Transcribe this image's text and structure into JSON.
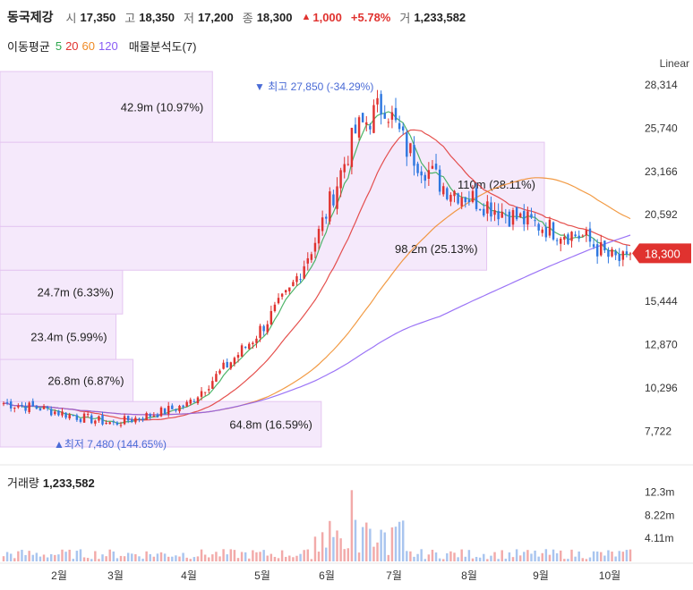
{
  "header": {
    "name": "동국제강",
    "open_label": "시",
    "open": "17,350",
    "high_label": "고",
    "high": "18,350",
    "low_label": "저",
    "low": "17,200",
    "close_label": "종",
    "close": "18,300",
    "change_icon": "triangle-up-icon",
    "change": "1,000",
    "change_pct": "+5.78%",
    "volume_label": "거",
    "volume": "1,233,582"
  },
  "indicators": {
    "ma_label": "이동평균",
    "ma": [
      {
        "period": "5",
        "color": "#2fa84f"
      },
      {
        "period": "20",
        "color": "#e0322f"
      },
      {
        "period": "60",
        "color": "#f08a24"
      },
      {
        "period": "120",
        "color": "#8a5cf5"
      }
    ],
    "profile_label": "매물분석도(7)"
  },
  "scale_label": "Linear",
  "volume_panel": {
    "label": "거래량",
    "value": "1,233,582"
  },
  "chart_data": {
    "type": "candlestick",
    "y_ticks": [
      "28,314",
      "25,740",
      "23,166",
      "20,592",
      "18,300",
      "15,444",
      "12,870",
      "10,296",
      "7,722"
    ],
    "ylim": [
      6800,
      29100
    ],
    "current_price": "18,300",
    "x_ticks": [
      "2월",
      "3월",
      "4월",
      "5월",
      "6월",
      "7월",
      "8월",
      "9월",
      "10월"
    ],
    "high_marker": {
      "text": "최고 27,850 (-34.29%)"
    },
    "low_marker": {
      "text": "최저 7,480 (144.65%)"
    },
    "volume_profile": [
      {
        "label": "64.8m (16.59%)",
        "price_lo": 6800,
        "price_hi": 9500,
        "share": 16.59
      },
      {
        "label": "26.8m (6.87%)",
        "price_lo": 9500,
        "price_hi": 12000,
        "share": 6.87
      },
      {
        "label": "23.4m (5.99%)",
        "price_lo": 12000,
        "price_hi": 14700,
        "share": 5.99
      },
      {
        "label": "24.7m (6.33%)",
        "price_lo": 14700,
        "price_hi": 17300,
        "share": 6.33
      },
      {
        "label": "98.2m (25.13%)",
        "price_lo": 17300,
        "price_hi": 19900,
        "share": 25.13
      },
      {
        "label": "110m (28.11%)",
        "price_lo": 19900,
        "price_hi": 24900,
        "share": 28.11
      },
      {
        "label": "42.9m (10.97%)",
        "price_lo": 24900,
        "price_hi": 29100,
        "share": 10.97
      }
    ],
    "volume_ticks": [
      "12.3m",
      "8.22m",
      "4.11m"
    ],
    "volume_ylim": [
      0,
      14000000
    ]
  }
}
